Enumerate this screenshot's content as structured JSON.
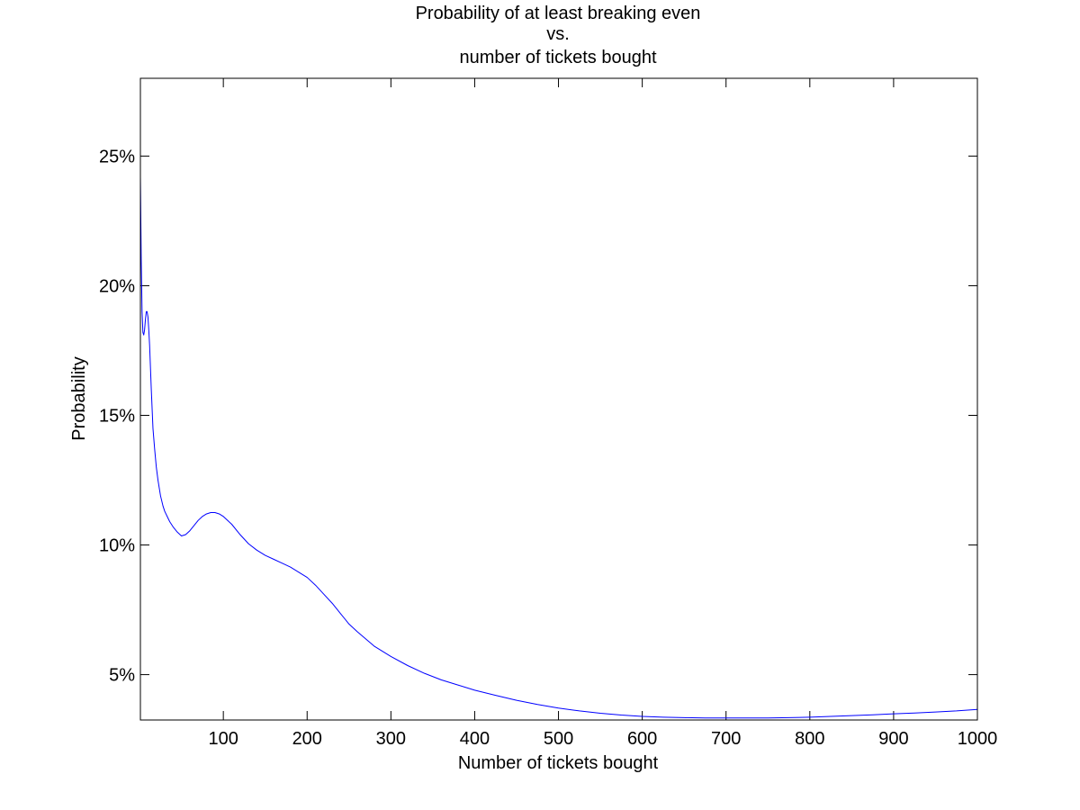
{
  "chart_data": {
    "type": "line",
    "title": [
      "Probability of at least breaking even",
      "vs.",
      "number of tickets bought"
    ],
    "xlabel": "Number of tickets bought",
    "ylabel": "Probability",
    "xlim": [
      1,
      1000
    ],
    "ylim": [
      0.0325,
      0.28
    ],
    "xticks": [
      100,
      200,
      300,
      400,
      500,
      600,
      700,
      800,
      900,
      1000
    ],
    "xtick_labels": [
      "100",
      "200",
      "300",
      "400",
      "500",
      "600",
      "700",
      "800",
      "900",
      "1000"
    ],
    "yticks": [
      0.05,
      0.1,
      0.15,
      0.2,
      0.25
    ],
    "ytick_labels": [
      "5%",
      "10%",
      "15%",
      "20%",
      "25%"
    ],
    "grid": false,
    "line_color": "#0000ff",
    "series": [
      {
        "x": [
          1,
          2,
          3,
          4,
          5,
          6,
          7,
          8,
          9,
          10,
          11,
          12,
          14,
          16,
          18,
          20,
          22,
          25,
          28,
          30,
          33,
          36,
          40,
          45,
          50,
          55,
          60,
          65,
          70,
          75,
          80,
          85,
          90,
          95,
          100,
          110,
          120,
          130,
          140,
          150,
          160,
          170,
          180,
          190,
          200,
          210,
          220,
          230,
          240,
          250,
          260,
          280,
          300,
          320,
          340,
          360,
          380,
          400,
          425,
          450,
          475,
          500,
          525,
          550,
          575,
          600,
          625,
          650,
          675,
          700,
          725,
          750,
          775,
          800,
          825,
          850,
          875,
          900,
          925,
          950,
          975,
          1000
        ],
        "y": [
          0.242,
          0.21,
          0.19,
          0.182,
          0.181,
          0.183,
          0.187,
          0.19,
          0.19,
          0.188,
          0.183,
          0.177,
          0.16,
          0.145,
          0.137,
          0.13,
          0.125,
          0.119,
          0.115,
          0.113,
          0.111,
          0.109,
          0.107,
          0.105,
          0.1035,
          0.104,
          0.1055,
          0.1075,
          0.1095,
          0.111,
          0.112,
          0.1125,
          0.1125,
          0.112,
          0.111,
          0.108,
          0.104,
          0.1005,
          0.098,
          0.096,
          0.0945,
          0.093,
          0.0915,
          0.0895,
          0.0875,
          0.0845,
          0.081,
          0.0775,
          0.0735,
          0.0695,
          0.0665,
          0.061,
          0.057,
          0.0535,
          0.0505,
          0.048,
          0.046,
          0.044,
          0.042,
          0.0401,
          0.0385,
          0.0371,
          0.036,
          0.0351,
          0.0344,
          0.0339,
          0.0336,
          0.0334,
          0.0333,
          0.0333,
          0.0333,
          0.0333,
          0.0334,
          0.0336,
          0.0339,
          0.0342,
          0.0345,
          0.0349,
          0.0352,
          0.0356,
          0.036,
          0.0366
        ]
      }
    ]
  }
}
